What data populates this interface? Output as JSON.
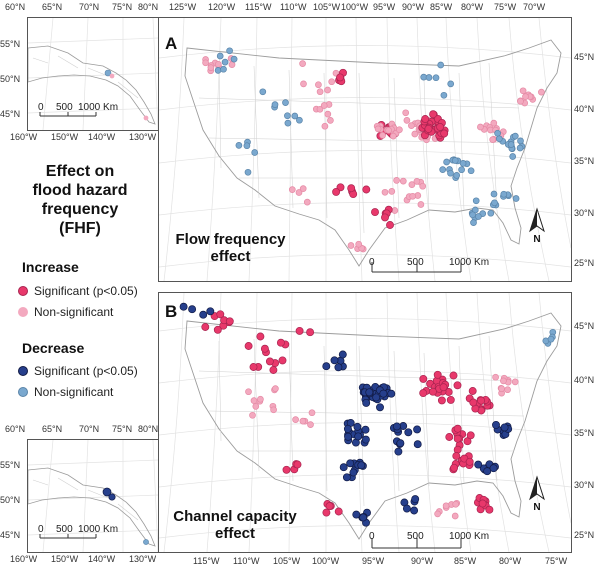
{
  "colors": {
    "sig_increase": "#e8386b",
    "nonsig_increase": "#f3a9bf",
    "sig_decrease": "#263f8c",
    "nonsig_decrease": "#7aa8cf"
  },
  "legend": {
    "title_lines": [
      "Effect on",
      "flood hazard",
      "frequency",
      "(FHF)"
    ],
    "increase_heading": "Increase",
    "decrease_heading": "Decrease",
    "significant_label": "Significant (p<0.05)",
    "nonsignificant_label": "Non-significant"
  },
  "panel_a": {
    "letter": "A",
    "title_lines": [
      "Flow frequency",
      "effect"
    ],
    "lon_ticks": [
      "125°W",
      "120°W",
      "115°W",
      "110°W",
      "105°W",
      "100°W",
      "95°W",
      "90°W",
      "85°W",
      "80°W",
      "75°W",
      "70°W"
    ],
    "lat_ticks": [
      "45°N",
      "40°N",
      "35°N",
      "30°N",
      "25°N"
    ],
    "scalebar": [
      "0",
      "500",
      "1000 Km"
    ],
    "north_label": "N"
  },
  "panel_b": {
    "letter": "B",
    "title_lines": [
      "Channel capacity",
      "effect"
    ],
    "lon_ticks": [
      "115°W",
      "110°W",
      "105°W",
      "100°W",
      "95°W",
      "90°W",
      "85°W",
      "80°W",
      "75°W"
    ],
    "lat_ticks": [
      "45°N",
      "40°N",
      "35°N",
      "30°N",
      "25°N"
    ],
    "scalebar": [
      "0",
      "500",
      "1000 Km"
    ],
    "north_label": "N"
  },
  "inset_a": {
    "lon_ticks": [
      "60°N",
      "65°N",
      "70°N",
      "75°N",
      "80°N"
    ],
    "bottom_ticks": [
      "160°W",
      "150°W",
      "140°W",
      "130°W"
    ],
    "lat_ticks": [
      "55°N",
      "50°N",
      "45°N"
    ],
    "scalebar": [
      "0",
      "500",
      "1000 Km"
    ]
  },
  "inset_b": {
    "lon_ticks": [
      "60°N",
      "65°N",
      "70°N",
      "75°N",
      "80°N"
    ],
    "bottom_ticks": [
      "160°W",
      "150°W",
      "140°W",
      "130°W"
    ],
    "lat_ticks": [
      "55°N",
      "50°N",
      "45°N"
    ],
    "scalebar": [
      "0",
      "500",
      "1000 Km"
    ]
  }
}
